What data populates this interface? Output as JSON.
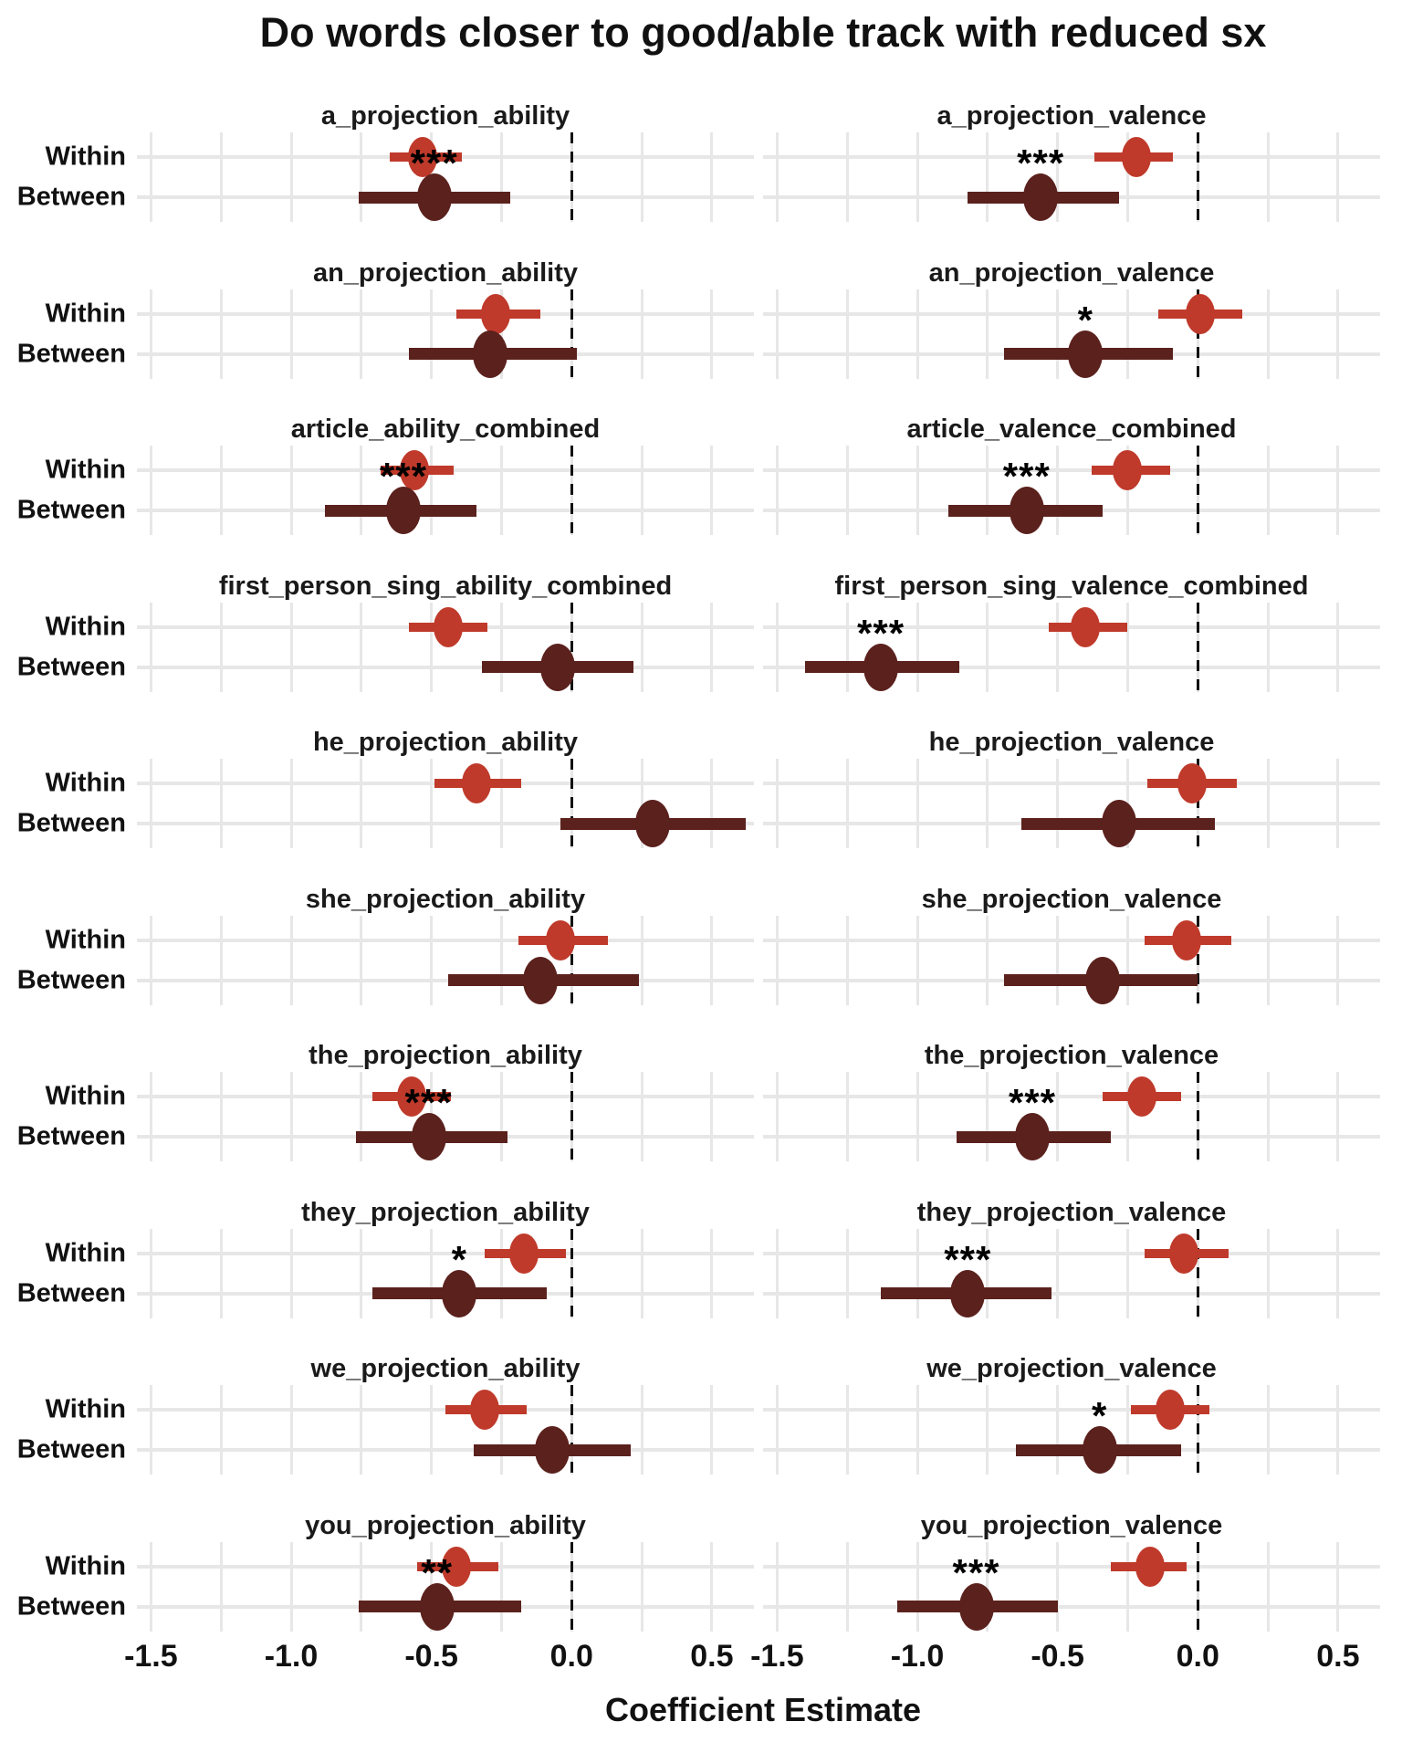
{
  "title": "Do words closer to good/able track with reduced sx",
  "xlabel": "Coefficient Estimate",
  "colors": {
    "within": "#bf3a2b",
    "between": "#5b211d",
    "grid": "#e7e7e7",
    "zero_line": "#121212",
    "text": "#111111"
  },
  "chart_data": {
    "type": "pointrange_forest",
    "title": "Do words closer to good/able track with reduced sx",
    "xlabel": "Coefficient Estimate",
    "x_domain": [
      -1.55,
      0.65
    ],
    "x_ticks": [
      -1.5,
      -1.0,
      -0.5,
      0.0,
      0.5
    ],
    "x_tick_labels": [
      "-1.5",
      "-1.0",
      "-0.5",
      "0.0",
      "0.5"
    ],
    "minor_grid_step": 0.25,
    "zero_reference_line": 0,
    "grid": "on",
    "legend": "none",
    "groups": [
      "Within",
      "Between"
    ],
    "group_colors": {
      "Within": "#bf3a2b",
      "Between": "#5b211d"
    },
    "facets": [
      {
        "name": "a_projection_ability",
        "within": {
          "estimate": -0.53,
          "ci_low": -0.65,
          "ci_high": -0.39
        },
        "between": {
          "estimate": -0.49,
          "ci_low": -0.76,
          "ci_high": -0.22
        },
        "stars": "***"
      },
      {
        "name": "a_projection_valence",
        "within": {
          "estimate": -0.22,
          "ci_low": -0.37,
          "ci_high": -0.09
        },
        "between": {
          "estimate": -0.56,
          "ci_low": -0.82,
          "ci_high": -0.28
        },
        "stars": "***"
      },
      {
        "name": "an_projection_ability",
        "within": {
          "estimate": -0.27,
          "ci_low": -0.41,
          "ci_high": -0.11
        },
        "between": {
          "estimate": -0.29,
          "ci_low": -0.58,
          "ci_high": 0.02
        },
        "stars": ""
      },
      {
        "name": "an_projection_valence",
        "within": {
          "estimate": 0.01,
          "ci_low": -0.14,
          "ci_high": 0.16
        },
        "between": {
          "estimate": -0.4,
          "ci_low": -0.69,
          "ci_high": -0.09
        },
        "stars": "*"
      },
      {
        "name": "article_ability_combined",
        "within": {
          "estimate": -0.56,
          "ci_low": -0.68,
          "ci_high": -0.42
        },
        "between": {
          "estimate": -0.6,
          "ci_low": -0.88,
          "ci_high": -0.34
        },
        "stars": "***"
      },
      {
        "name": "article_valence_combined",
        "within": {
          "estimate": -0.25,
          "ci_low": -0.38,
          "ci_high": -0.1
        },
        "between": {
          "estimate": -0.61,
          "ci_low": -0.89,
          "ci_high": -0.34
        },
        "stars": "***"
      },
      {
        "name": "first_person_sing_ability_combined",
        "within": {
          "estimate": -0.44,
          "ci_low": -0.58,
          "ci_high": -0.3
        },
        "between": {
          "estimate": -0.05,
          "ci_low": -0.32,
          "ci_high": 0.22
        },
        "stars": ""
      },
      {
        "name": "first_person_sing_valence_combined",
        "within": {
          "estimate": -0.4,
          "ci_low": -0.53,
          "ci_high": -0.25
        },
        "between": {
          "estimate": -1.13,
          "ci_low": -1.4,
          "ci_high": -0.85
        },
        "stars": "***"
      },
      {
        "name": "he_projection_ability",
        "within": {
          "estimate": -0.34,
          "ci_low": -0.49,
          "ci_high": -0.18
        },
        "between": {
          "estimate": 0.29,
          "ci_low": -0.04,
          "ci_high": 0.62
        },
        "stars": ""
      },
      {
        "name": "he_projection_valence",
        "within": {
          "estimate": -0.02,
          "ci_low": -0.18,
          "ci_high": 0.14
        },
        "between": {
          "estimate": -0.28,
          "ci_low": -0.63,
          "ci_high": 0.06
        },
        "stars": ""
      },
      {
        "name": "she_projection_ability",
        "within": {
          "estimate": -0.04,
          "ci_low": -0.19,
          "ci_high": 0.13
        },
        "between": {
          "estimate": -0.11,
          "ci_low": -0.44,
          "ci_high": 0.24
        },
        "stars": ""
      },
      {
        "name": "she_projection_valence",
        "within": {
          "estimate": -0.04,
          "ci_low": -0.19,
          "ci_high": 0.12
        },
        "between": {
          "estimate": -0.34,
          "ci_low": -0.69,
          "ci_high": 0.0
        },
        "stars": ""
      },
      {
        "name": "the_projection_ability",
        "within": {
          "estimate": -0.57,
          "ci_low": -0.71,
          "ci_high": -0.43
        },
        "between": {
          "estimate": -0.51,
          "ci_low": -0.77,
          "ci_high": -0.23
        },
        "stars": "***"
      },
      {
        "name": "the_projection_valence",
        "within": {
          "estimate": -0.2,
          "ci_low": -0.34,
          "ci_high": -0.06
        },
        "between": {
          "estimate": -0.59,
          "ci_low": -0.86,
          "ci_high": -0.31
        },
        "stars": "***"
      },
      {
        "name": "they_projection_ability",
        "within": {
          "estimate": -0.17,
          "ci_low": -0.31,
          "ci_high": -0.02
        },
        "between": {
          "estimate": -0.4,
          "ci_low": -0.71,
          "ci_high": -0.09
        },
        "stars": "*"
      },
      {
        "name": "they_projection_valence",
        "within": {
          "estimate": -0.05,
          "ci_low": -0.19,
          "ci_high": 0.11
        },
        "between": {
          "estimate": -0.82,
          "ci_low": -1.13,
          "ci_high": -0.52
        },
        "stars": "***"
      },
      {
        "name": "we_projection_ability",
        "within": {
          "estimate": -0.31,
          "ci_low": -0.45,
          "ci_high": -0.16
        },
        "between": {
          "estimate": -0.07,
          "ci_low": -0.35,
          "ci_high": 0.21
        },
        "stars": ""
      },
      {
        "name": "we_projection_valence",
        "within": {
          "estimate": -0.1,
          "ci_low": -0.24,
          "ci_high": 0.04
        },
        "between": {
          "estimate": -0.35,
          "ci_low": -0.65,
          "ci_high": -0.06
        },
        "stars": "*"
      },
      {
        "name": "you_projection_ability",
        "within": {
          "estimate": -0.41,
          "ci_low": -0.55,
          "ci_high": -0.26
        },
        "between": {
          "estimate": -0.48,
          "ci_low": -0.76,
          "ci_high": -0.18
        },
        "stars": "**"
      },
      {
        "name": "you_projection_valence",
        "within": {
          "estimate": -0.17,
          "ci_low": -0.31,
          "ci_high": -0.04
        },
        "between": {
          "estimate": -0.79,
          "ci_low": -1.07,
          "ci_high": -0.5
        },
        "stars": "***"
      }
    ]
  }
}
